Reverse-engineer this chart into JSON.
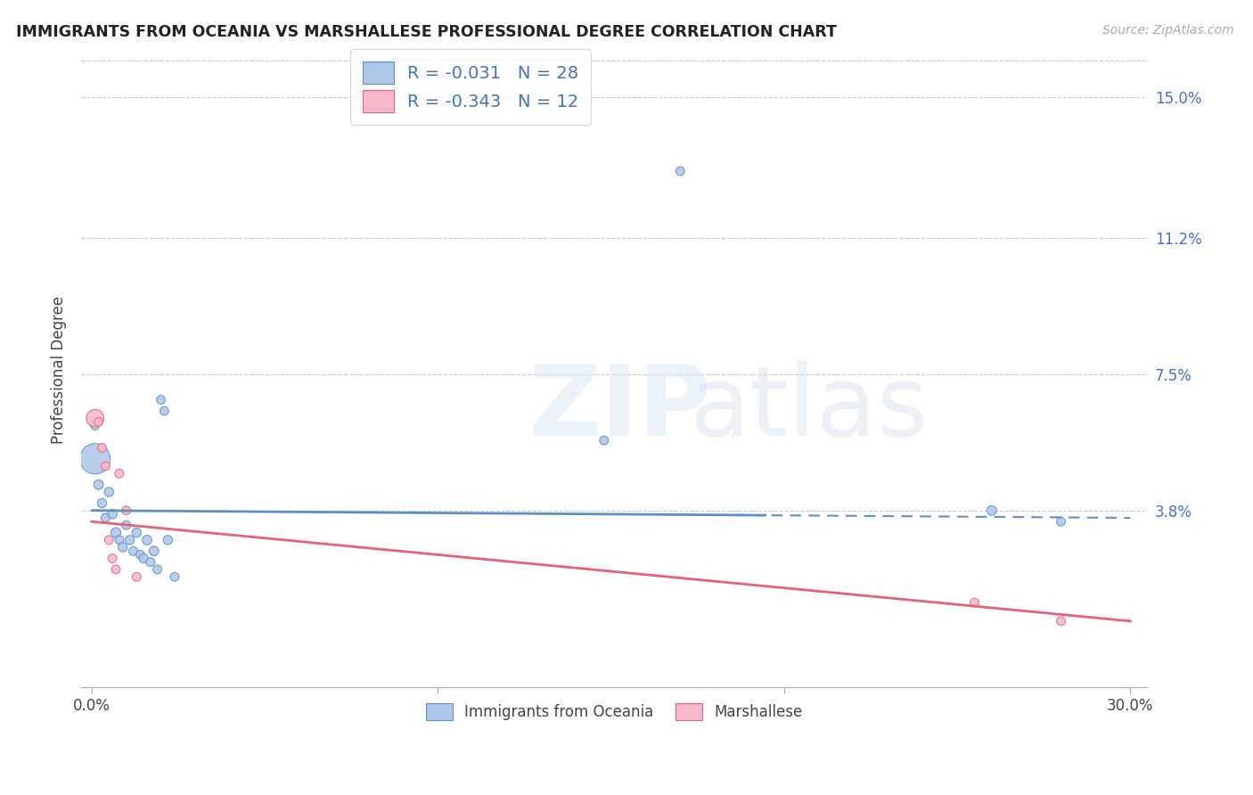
{
  "title": "IMMIGRANTS FROM OCEANIA VS MARSHALLESE PROFESSIONAL DEGREE CORRELATION CHART",
  "source": "Source: ZipAtlas.com",
  "ylabel": "Professional Degree",
  "legend_label1": "Immigrants from Oceania",
  "legend_label2": "Marshallese",
  "legend_r1": "-0.031",
  "legend_n1": "28",
  "legend_r2": "-0.343",
  "legend_n2": "12",
  "color_blue": "#aec6e8",
  "color_pink": "#f5b8c8",
  "line_color_blue": "#5b8fc9",
  "line_color_pink": "#e8607a",
  "text_color_blue": "#4472c4",
  "y_tick_values": [
    0.038,
    0.075,
    0.112,
    0.15
  ],
  "y_tick_labels": [
    "3.8%",
    "7.5%",
    "11.2%",
    "15.0%"
  ],
  "xlim": [
    -0.003,
    0.305
  ],
  "ylim": [
    -0.01,
    0.162
  ],
  "blue_x": [
    0.001,
    0.001,
    0.002,
    0.003,
    0.004,
    0.005,
    0.006,
    0.007,
    0.008,
    0.009,
    0.01,
    0.011,
    0.012,
    0.013,
    0.014,
    0.015,
    0.016,
    0.017,
    0.018,
    0.019,
    0.02,
    0.021,
    0.022,
    0.024,
    0.17,
    0.26,
    0.148,
    0.28
  ],
  "blue_y": [
    0.061,
    0.052,
    0.045,
    0.04,
    0.036,
    0.043,
    0.037,
    0.032,
    0.03,
    0.028,
    0.034,
    0.03,
    0.027,
    0.032,
    0.026,
    0.025,
    0.03,
    0.024,
    0.027,
    0.022,
    0.068,
    0.065,
    0.03,
    0.02,
    0.13,
    0.038,
    0.057,
    0.035
  ],
  "blue_sizes": [
    50,
    600,
    60,
    55,
    50,
    55,
    55,
    65,
    50,
    55,
    50,
    55,
    50,
    55,
    50,
    55,
    60,
    50,
    60,
    50,
    50,
    50,
    55,
    50,
    50,
    60,
    50,
    50
  ],
  "pink_x": [
    0.001,
    0.002,
    0.003,
    0.004,
    0.005,
    0.006,
    0.007,
    0.008,
    0.01,
    0.013,
    0.255,
    0.28
  ],
  "pink_y": [
    0.063,
    0.062,
    0.055,
    0.05,
    0.03,
    0.025,
    0.022,
    0.048,
    0.038,
    0.02,
    0.013,
    0.008
  ],
  "pink_sizes": [
    200,
    50,
    50,
    50,
    50,
    50,
    50,
    50,
    50,
    50,
    50,
    50
  ],
  "blue_line_y0": 0.038,
  "blue_line_y1": 0.036,
  "pink_line_y0": 0.035,
  "pink_line_y1": 0.008
}
